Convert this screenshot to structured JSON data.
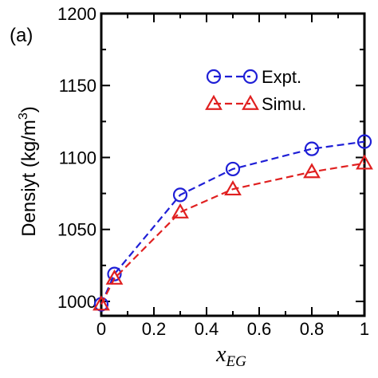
{
  "chart_data": {
    "type": "line",
    "panel_label": "(a)",
    "title": "",
    "xlabel": {
      "main": "x",
      "sub": "EG"
    },
    "ylabel": {
      "main": "Densiyt (kg/m",
      "sup": "3",
      "close": ")"
    },
    "xlim": [
      0,
      1
    ],
    "ylim": [
      990,
      1200
    ],
    "xticks": [
      0,
      0.2,
      0.4,
      0.6,
      0.8,
      1
    ],
    "xtick_labels": [
      "0",
      "0.2",
      "0.4",
      "0.6",
      "0.8",
      "1"
    ],
    "yticks": [
      1000,
      1050,
      1100,
      1150,
      1200
    ],
    "ytick_labels": [
      "1000",
      "1050",
      "1100",
      "1150",
      "1200"
    ],
    "grid": false,
    "legend_position": "top-right",
    "series": [
      {
        "name": "Expt.",
        "color": "#1f1fd6",
        "marker": "circle",
        "x": [
          0,
          0.05,
          0.3,
          0.5,
          0.8,
          1
        ],
        "y": [
          998,
          1019,
          1074,
          1092,
          1106,
          1111
        ]
      },
      {
        "name": "Simu.",
        "color": "#e02020",
        "marker": "triangle",
        "x": [
          0,
          0.05,
          0.3,
          0.5,
          0.8,
          1
        ],
        "y": [
          998,
          1016,
          1062,
          1078,
          1090,
          1096
        ]
      }
    ]
  }
}
